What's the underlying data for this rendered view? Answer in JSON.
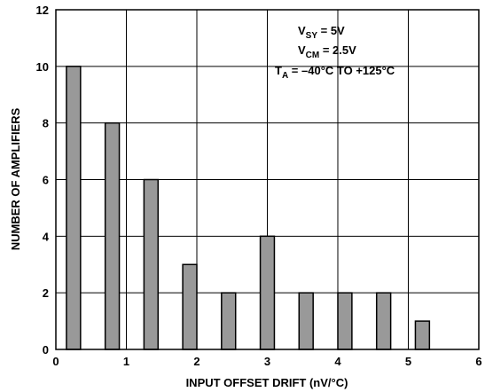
{
  "chart_data": {
    "type": "bar",
    "xlabel": "INPUT OFFSET DRIFT (nV/°C)",
    "ylabel": "NUMBER OF AMPLIFIERS",
    "xlim": [
      0,
      6
    ],
    "ylim": [
      0,
      12
    ],
    "xticks": [
      0,
      1,
      2,
      3,
      4,
      5,
      6
    ],
    "yticks": [
      0,
      2,
      4,
      6,
      8,
      10,
      12
    ],
    "grid": true,
    "x": [
      0.25,
      0.8,
      1.35,
      1.9,
      2.45,
      3.0,
      3.55,
      4.1,
      4.65,
      5.2
    ],
    "values": [
      10,
      8,
      6,
      3,
      2,
      4,
      2,
      2,
      2,
      1
    ],
    "bar_width": 0.2,
    "bar_color": "#999999",
    "annotations": [
      {
        "main": "V",
        "sub": "SY",
        "rest": " = 5V"
      },
      {
        "main": "V",
        "sub": "CM",
        "rest": " = 2.5V"
      },
      {
        "main": "T",
        "sub": "A",
        "rest": " = –40°C TO +125°C"
      }
    ]
  }
}
